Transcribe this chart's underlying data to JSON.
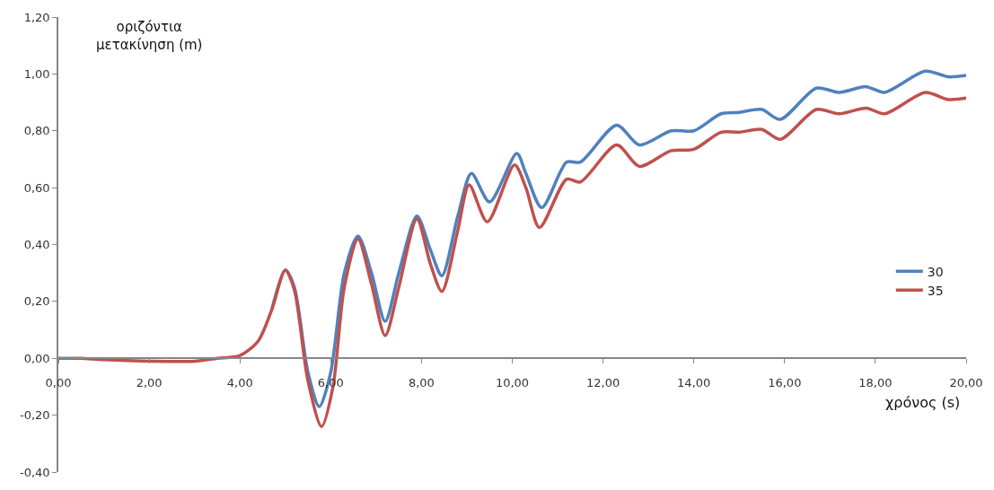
{
  "chart_data": {
    "type": "line",
    "xlabel": "χρόνος (s)",
    "ylabel": "οριζόντια\nμετακίνηση (m)",
    "xlim": [
      0,
      20
    ],
    "ylim": [
      -0.4,
      1.2
    ],
    "xticks": [
      {
        "value": 0,
        "label": "0,00"
      },
      {
        "value": 2,
        "label": "2,00"
      },
      {
        "value": 4,
        "label": "4,00"
      },
      {
        "value": 6,
        "label": "6,00"
      },
      {
        "value": 8,
        "label": "8,00"
      },
      {
        "value": 10,
        "label": "10,00"
      },
      {
        "value": 12,
        "label": "12,00"
      },
      {
        "value": 14,
        "label": "14,00"
      },
      {
        "value": 16,
        "label": "16,00"
      },
      {
        "value": 18,
        "label": "18,00"
      },
      {
        "value": 20,
        "label": "20,00"
      }
    ],
    "yticks": [
      {
        "value": -0.4,
        "label": "-0,40"
      },
      {
        "value": -0.2,
        "label": "-0,20"
      },
      {
        "value": 0,
        "label": "0,00"
      },
      {
        "value": 0.2,
        "label": "0,20"
      },
      {
        "value": 0.4,
        "label": "0,40"
      },
      {
        "value": 0.6,
        "label": "0,60"
      },
      {
        "value": 0.8,
        "label": "0,80"
      },
      {
        "value": 1.0,
        "label": "1,00"
      },
      {
        "value": 1.2,
        "label": "1,20"
      }
    ],
    "legend": "right",
    "marker": "none",
    "line_style": "solid",
    "series": [
      {
        "name": "30",
        "color": "#4f81bd",
        "x": [
          0,
          0.3,
          1,
          2,
          3,
          3.5,
          4,
          4.4,
          4.7,
          5.0,
          5.2,
          5.5,
          5.75,
          6.0,
          6.3,
          6.6,
          6.9,
          7.2,
          7.5,
          7.9,
          8.2,
          8.45,
          8.8,
          9.1,
          9.5,
          10.1,
          10.3,
          10.65,
          11.2,
          11.5,
          12.3,
          12.8,
          13.5,
          14.0,
          14.6,
          15.0,
          15.5,
          15.9,
          16.7,
          17.2,
          17.8,
          18.2,
          19.1,
          19.6,
          20
        ],
        "values": [
          0,
          0,
          null,
          null,
          null,
          null,
          null,
          null,
          0.17,
          0.31,
          0.25,
          -0.05,
          -0.17,
          -0.05,
          0.3,
          0.43,
          0.3,
          0.13,
          0.3,
          0.5,
          0.38,
          0.29,
          0.5,
          0.65,
          0.55,
          0.72,
          0.65,
          0.53,
          0.69,
          0.69,
          0.82,
          0.75,
          0.8,
          0.8,
          0.86,
          0.865,
          0.875,
          0.84,
          0.95,
          0.935,
          0.955,
          0.935,
          1.01,
          0.99,
          0.995
        ]
      },
      {
        "name": "35",
        "color": "#c0504d",
        "x": [
          0.3,
          0.5,
          1,
          2,
          3,
          3.5,
          4,
          4.4,
          4.7,
          5.0,
          5.2,
          5.5,
          5.8,
          6.05,
          6.3,
          6.6,
          6.9,
          7.2,
          7.5,
          7.9,
          8.2,
          8.45,
          8.8,
          9.05,
          9.45,
          10.05,
          10.3,
          10.6,
          11.2,
          11.5,
          12.3,
          12.8,
          13.5,
          14.0,
          14.6,
          15.0,
          15.5,
          15.9,
          16.7,
          17.2,
          17.8,
          18.2,
          19.1,
          19.6,
          20
        ],
        "values": [
          0,
          0,
          -0.005,
          -0.01,
          -0.01,
          0,
          0.01,
          0.06,
          0.17,
          0.31,
          0.24,
          -0.08,
          -0.24,
          -0.1,
          0.25,
          0.42,
          0.26,
          0.08,
          0.25,
          0.49,
          0.33,
          0.235,
          0.45,
          0.61,
          0.48,
          0.68,
          0.6,
          0.46,
          0.63,
          0.62,
          0.75,
          0.675,
          0.73,
          0.735,
          0.795,
          0.795,
          0.805,
          0.77,
          0.875,
          0.86,
          0.88,
          0.86,
          0.935,
          0.91,
          0.915
        ]
      }
    ]
  }
}
